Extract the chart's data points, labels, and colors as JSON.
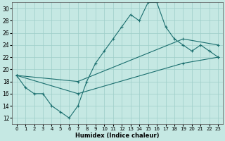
{
  "xlabel": "Humidex (Indice chaleur)",
  "bg_color": "#c5e8e3",
  "grid_color": "#9ecec8",
  "line_color": "#1a6e6e",
  "xlim": [
    -0.5,
    23.5
  ],
  "ylim": [
    11,
    31
  ],
  "xticks": [
    0,
    1,
    2,
    3,
    4,
    5,
    6,
    7,
    8,
    9,
    10,
    11,
    12,
    13,
    14,
    15,
    16,
    17,
    18,
    19,
    20,
    21,
    22,
    23
  ],
  "yticks": [
    12,
    14,
    16,
    18,
    20,
    22,
    24,
    26,
    28,
    30
  ],
  "line1_x": [
    0,
    1,
    2,
    3,
    4,
    5,
    6,
    7,
    8,
    9,
    10,
    11,
    12,
    13,
    14,
    15,
    16,
    17,
    18,
    19,
    20,
    21,
    22,
    23
  ],
  "line1_y": [
    19,
    17,
    16,
    16,
    14,
    13,
    12,
    14,
    18,
    21,
    23,
    25,
    27,
    29,
    28,
    31,
    31,
    27,
    25,
    24,
    23,
    24,
    23,
    22
  ],
  "line2_x": [
    0,
    7,
    19,
    23
  ],
  "line2_y": [
    19,
    18,
    25,
    24
  ],
  "line3_x": [
    0,
    7,
    19,
    23
  ],
  "line3_y": [
    19,
    16,
    21,
    22
  ]
}
